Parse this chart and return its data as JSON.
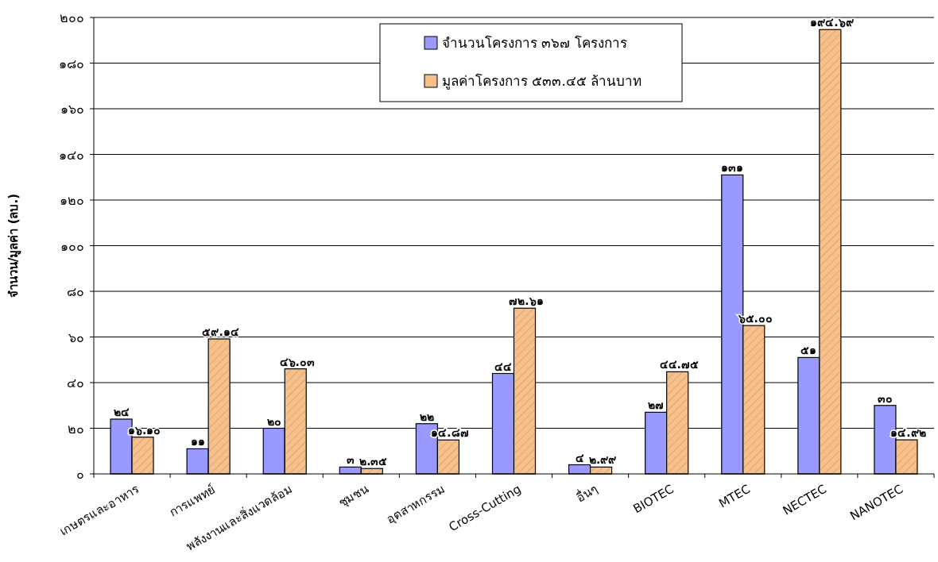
{
  "chart_data": {
    "type": "bar",
    "ylabel": "จำนวน/มูลค่า (ลบ.)",
    "categories": [
      "เกษตรและอาหาร",
      "การแพทย์",
      "พลังงานและสิ่งแวดล้อม",
      "ชุมชน",
      "อุตสาหกรรม",
      "Cross-Cutting",
      "อื่นๆ",
      "BIOTEC",
      "MTEC",
      "NECTEC",
      "NANOTEC"
    ],
    "series": [
      {
        "name": "จำนวนโครงการ ๓๖๗ โครงการ",
        "color": "#9999ff",
        "values": [
          24,
          11,
          20,
          3,
          22,
          44,
          4,
          27,
          131,
          51,
          30
        ],
        "value_labels": [
          "๒๔",
          "๑๑",
          "๒๐",
          "๓",
          "๒๒",
          "๔๔",
          "๔",
          "๒๗",
          "๑๓๑",
          "๕๑",
          "๓๐"
        ]
      },
      {
        "name": "มูลค่าโครงการ ๕๓๓.๔๕ ล้านบาท",
        "color": "#f5c08c",
        "values": [
          16.1,
          59.14,
          46.03,
          2.35,
          14.87,
          72.61,
          2.99,
          44.75,
          65.0,
          194.69,
          14.92
        ],
        "value_labels": [
          "๑๖.๑๐",
          "๕๙.๑๔",
          "๔๖.๐๓",
          "๒.๓๕",
          "๑๔.๘๗",
          "๗๒.๖๑",
          "๒.๙๙",
          "๔๔.๗๕",
          "๖๕.๐๐",
          "๑๙๔.๖๙",
          "๑๔.๙๒"
        ]
      }
    ],
    "ylim": [
      0,
      200
    ],
    "yticks": [
      {
        "value": 0,
        "label": "๐"
      },
      {
        "value": 20,
        "label": "๒๐"
      },
      {
        "value": 40,
        "label": "๔๐"
      },
      {
        "value": 60,
        "label": "๖๐"
      },
      {
        "value": 80,
        "label": "๘๐"
      },
      {
        "value": 100,
        "label": "๑๐๐"
      },
      {
        "value": 120,
        "label": "๑๒๐"
      },
      {
        "value": 140,
        "label": "๑๔๐"
      },
      {
        "value": 160,
        "label": "๑๖๐"
      },
      {
        "value": 180,
        "label": "๑๘๐"
      },
      {
        "value": 200,
        "label": "๒๐๐"
      }
    ],
    "grid": "y",
    "legend": "top"
  }
}
